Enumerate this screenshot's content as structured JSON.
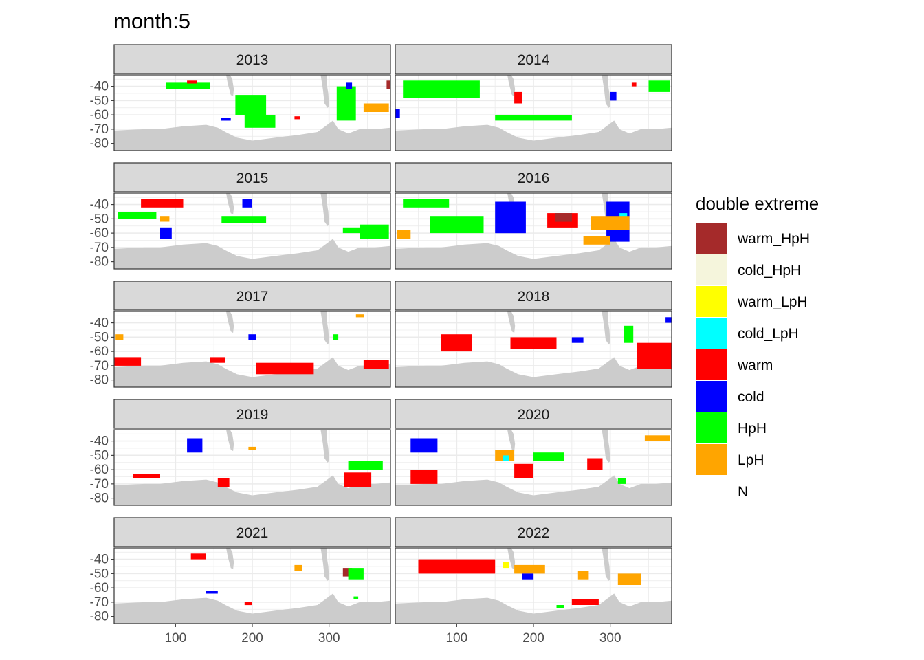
{
  "chart_data": {
    "type": "heatmap",
    "title": "month:5",
    "xlabel": "",
    "ylabel": "",
    "facet_labels": [
      "2013",
      "2014",
      "2015",
      "2016",
      "2017",
      "2018",
      "2019",
      "2020",
      "2021",
      "2022"
    ],
    "x_ticks": [
      100,
      200,
      300
    ],
    "y_ticks": [
      -40,
      -50,
      -60,
      -70,
      -80
    ],
    "xlim": [
      20,
      380
    ],
    "ylim": [
      -85,
      -32
    ],
    "grid": true,
    "legend_position": "right",
    "legend_title": "double extreme",
    "categories": [
      {
        "name": "warm_HpH",
        "color": "#A52A2A"
      },
      {
        "name": "cold_HpH",
        "color": "#F5F5DC"
      },
      {
        "name": "warm_LpH",
        "color": "#FFFF00"
      },
      {
        "name": "cold_LpH",
        "color": "#00FFFF"
      },
      {
        "name": "warm",
        "color": "#FF0000"
      },
      {
        "name": "cold",
        "color": "#0000FF"
      },
      {
        "name": "HpH",
        "color": "#00FF00"
      },
      {
        "name": "LpH",
        "color": "#FFA500"
      },
      {
        "name": "N",
        "color": "transparent"
      }
    ],
    "land_color": "#CCCCCC",
    "panels": [
      {
        "year": "2013",
        "regions": [
          {
            "cat": "warm_HpH",
            "x": [
              375,
              380
            ],
            "y": [
              -42,
              -36
            ]
          },
          {
            "cat": "warm_HpH",
            "x": [
              120,
              125
            ],
            "y": [
              -41,
              -38
            ]
          },
          {
            "cat": "HpH",
            "x": [
              178,
              218
            ],
            "y": [
              -60,
              -46
            ]
          },
          {
            "cat": "HpH",
            "x": [
              190,
              230
            ],
            "y": [
              -69,
              -60
            ]
          },
          {
            "cat": "HpH",
            "x": [
              310,
              335
            ],
            "y": [
              -64,
              -40
            ]
          },
          {
            "cat": "HpH",
            "x": [
              88,
              145
            ],
            "y": [
              -42,
              -37
            ]
          },
          {
            "cat": "cold",
            "x": [
              322,
              330
            ],
            "y": [
              -42,
              -37
            ]
          },
          {
            "cat": "cold",
            "x": [
              159,
              172
            ],
            "y": [
              -64,
              -62
            ]
          },
          {
            "cat": "LpH",
            "x": [
              345,
              378
            ],
            "y": [
              -58,
              -52
            ]
          },
          {
            "cat": "warm",
            "x": [
              255,
              262
            ],
            "y": [
              -63,
              -61
            ]
          },
          {
            "cat": "warm",
            "x": [
              115,
              128
            ],
            "y": [
              -38,
              -36
            ]
          }
        ]
      },
      {
        "year": "2014",
        "regions": [
          {
            "cat": "HpH",
            "x": [
              30,
              130
            ],
            "y": [
              -48,
              -36
            ]
          },
          {
            "cat": "HpH",
            "x": [
              150,
              250
            ],
            "y": [
              -64,
              -60
            ]
          },
          {
            "cat": "HpH",
            "x": [
              350,
              378
            ],
            "y": [
              -44,
              -36
            ]
          },
          {
            "cat": "cold",
            "x": [
              300,
              308
            ],
            "y": [
              -50,
              -44
            ]
          },
          {
            "cat": "cold",
            "x": [
              20,
              26
            ],
            "y": [
              -62,
              -56
            ]
          },
          {
            "cat": "warm",
            "x": [
              175,
              185
            ],
            "y": [
              -52,
              -44
            ]
          },
          {
            "cat": "warm",
            "x": [
              328,
              334
            ],
            "y": [
              -40,
              -37
            ]
          }
        ]
      },
      {
        "year": "2015",
        "regions": [
          {
            "cat": "cold",
            "x": [
              187,
              200
            ],
            "y": [
              -42,
              -36
            ]
          },
          {
            "cat": "cold",
            "x": [
              80,
              95
            ],
            "y": [
              -64,
              -56
            ]
          },
          {
            "cat": "HpH",
            "x": [
              160,
              218
            ],
            "y": [
              -53,
              -48
            ]
          },
          {
            "cat": "HpH",
            "x": [
              340,
              378
            ],
            "y": [
              -64,
              -54
            ]
          },
          {
            "cat": "HpH",
            "x": [
              318,
              345
            ],
            "y": [
              -60,
              -56
            ]
          },
          {
            "cat": "HpH",
            "x": [
              25,
              75
            ],
            "y": [
              -50,
              -45
            ]
          },
          {
            "cat": "warm",
            "x": [
              55,
              110
            ],
            "y": [
              -42,
              -36
            ]
          },
          {
            "cat": "LpH",
            "x": [
              80,
              92
            ],
            "y": [
              -52,
              -48
            ]
          }
        ]
      },
      {
        "year": "2016",
        "regions": [
          {
            "cat": "HpH",
            "x": [
              65,
              135
            ],
            "y": [
              -60,
              -48
            ]
          },
          {
            "cat": "cold",
            "x": [
              150,
              190
            ],
            "y": [
              -60,
              -38
            ]
          },
          {
            "cat": "cold",
            "x": [
              295,
              325
            ],
            "y": [
              -66,
              -38
            ]
          },
          {
            "cat": "cold_LpH",
            "x": [
              312,
              322
            ],
            "y": [
              -50,
              -46
            ]
          },
          {
            "cat": "LpH",
            "x": [
              265,
              300
            ],
            "y": [
              -68,
              -62
            ]
          },
          {
            "cat": "LpH",
            "x": [
              275,
              325
            ],
            "y": [
              -58,
              -48
            ]
          },
          {
            "cat": "LpH",
            "x": [
              22,
              40
            ],
            "y": [
              -64,
              -58
            ]
          },
          {
            "cat": "warm",
            "x": [
              218,
              258
            ],
            "y": [
              -56,
              -46
            ]
          },
          {
            "cat": "warm_HpH",
            "x": [
              228,
              250
            ],
            "y": [
              -52,
              -46
            ]
          },
          {
            "cat": "HpH",
            "x": [
              30,
              90
            ],
            "y": [
              -42,
              -36
            ]
          }
        ]
      },
      {
        "year": "2017",
        "regions": [
          {
            "cat": "warm",
            "x": [
              205,
              280
            ],
            "y": [
              -76,
              -68
            ]
          },
          {
            "cat": "warm",
            "x": [
              145,
              165
            ],
            "y": [
              -68,
              -64
            ]
          },
          {
            "cat": "warm",
            "x": [
              20,
              55
            ],
            "y": [
              -70,
              -64
            ]
          },
          {
            "cat": "warm",
            "x": [
              345,
              378
            ],
            "y": [
              -72,
              -66
            ]
          },
          {
            "cat": "cold",
            "x": [
              195,
              205
            ],
            "y": [
              -52,
              -48
            ]
          },
          {
            "cat": "LpH",
            "x": [
              22,
              32
            ],
            "y": [
              -52,
              -48
            ]
          },
          {
            "cat": "LpH",
            "x": [
              335,
              345
            ],
            "y": [
              -36,
              -34
            ]
          },
          {
            "cat": "HpH",
            "x": [
              305,
              312
            ],
            "y": [
              -52,
              -48
            ]
          }
        ]
      },
      {
        "year": "2018",
        "regions": [
          {
            "cat": "warm",
            "x": [
              335,
              380
            ],
            "y": [
              -72,
              -54
            ]
          },
          {
            "cat": "warm",
            "x": [
              170,
              230
            ],
            "y": [
              -58,
              -50
            ]
          },
          {
            "cat": "cold",
            "x": [
              250,
              265
            ],
            "y": [
              -54,
              -50
            ]
          },
          {
            "cat": "cold",
            "x": [
              372,
              380
            ],
            "y": [
              -40,
              -36
            ]
          },
          {
            "cat": "HpH",
            "x": [
              318,
              330
            ],
            "y": [
              -54,
              -42
            ]
          },
          {
            "cat": "warm",
            "x": [
              80,
              120
            ],
            "y": [
              -60,
              -48
            ]
          }
        ]
      },
      {
        "year": "2019",
        "regions": [
          {
            "cat": "warm",
            "x": [
              320,
              355
            ],
            "y": [
              -72,
              -62
            ]
          },
          {
            "cat": "warm",
            "x": [
              45,
              80
            ],
            "y": [
              -66,
              -63
            ]
          },
          {
            "cat": "cold",
            "x": [
              115,
              135
            ],
            "y": [
              -48,
              -38
            ]
          },
          {
            "cat": "HpH",
            "x": [
              325,
              370
            ],
            "y": [
              -60,
              -54
            ]
          },
          {
            "cat": "LpH",
            "x": [
              195,
              205
            ],
            "y": [
              -46,
              -44
            ]
          },
          {
            "cat": "warm",
            "x": [
              155,
              170
            ],
            "y": [
              -72,
              -66
            ]
          }
        ]
      },
      {
        "year": "2020",
        "regions": [
          {
            "cat": "LpH",
            "x": [
              150,
              175
            ],
            "y": [
              -54,
              -46
            ]
          },
          {
            "cat": "cold_LpH",
            "x": [
              160,
              168
            ],
            "y": [
              -54,
              -50
            ]
          },
          {
            "cat": "warm",
            "x": [
              175,
              200
            ],
            "y": [
              -66,
              -56
            ]
          },
          {
            "cat": "warm",
            "x": [
              270,
              290
            ],
            "y": [
              -60,
              -52
            ]
          },
          {
            "cat": "HpH",
            "x": [
              200,
              240
            ],
            "y": [
              -54,
              -48
            ]
          },
          {
            "cat": "LpH",
            "x": [
              345,
              378
            ],
            "y": [
              -40,
              -36
            ]
          },
          {
            "cat": "cold",
            "x": [
              40,
              75
            ],
            "y": [
              -48,
              -38
            ]
          },
          {
            "cat": "warm",
            "x": [
              40,
              75
            ],
            "y": [
              -70,
              -60
            ]
          },
          {
            "cat": "HpH",
            "x": [
              310,
              320
            ],
            "y": [
              -70,
              -66
            ]
          }
        ]
      },
      {
        "year": "2021",
        "regions": [
          {
            "cat": "warm_HpH",
            "x": [
              318,
              330
            ],
            "y": [
              -52,
              -46
            ]
          },
          {
            "cat": "HpH",
            "x": [
              325,
              345
            ],
            "y": [
              -54,
              -46
            ]
          },
          {
            "cat": "LpH",
            "x": [
              255,
              265
            ],
            "y": [
              -48,
              -44
            ]
          },
          {
            "cat": "cold",
            "x": [
              140,
              155
            ],
            "y": [
              -64,
              -62
            ]
          },
          {
            "cat": "warm",
            "x": [
              190,
              200
            ],
            "y": [
              -72,
              -70
            ]
          },
          {
            "cat": "HpH",
            "x": [
              332,
              338
            ],
            "y": [
              -68,
              -66
            ]
          },
          {
            "cat": "warm",
            "x": [
              120,
              140
            ],
            "y": [
              -40,
              -36
            ]
          }
        ]
      },
      {
        "year": "2022",
        "regions": [
          {
            "cat": "LpH",
            "x": [
              175,
              215
            ],
            "y": [
              -50,
              -44
            ]
          },
          {
            "cat": "LpH",
            "x": [
              258,
              272
            ],
            "y": [
              -54,
              -48
            ]
          },
          {
            "cat": "LpH",
            "x": [
              310,
              340
            ],
            "y": [
              -58,
              -50
            ]
          },
          {
            "cat": "warm_LpH",
            "x": [
              160,
              168
            ],
            "y": [
              -46,
              -42
            ]
          },
          {
            "cat": "warm",
            "x": [
              250,
              285
            ],
            "y": [
              -72,
              -68
            ]
          },
          {
            "cat": "cold",
            "x": [
              185,
              200
            ],
            "y": [
              -54,
              -50
            ]
          },
          {
            "cat": "warm",
            "x": [
              50,
              150
            ],
            "y": [
              -50,
              -40
            ]
          },
          {
            "cat": "HpH",
            "x": [
              230,
              240
            ],
            "y": [
              -74,
              -72
            ]
          }
        ]
      }
    ]
  }
}
